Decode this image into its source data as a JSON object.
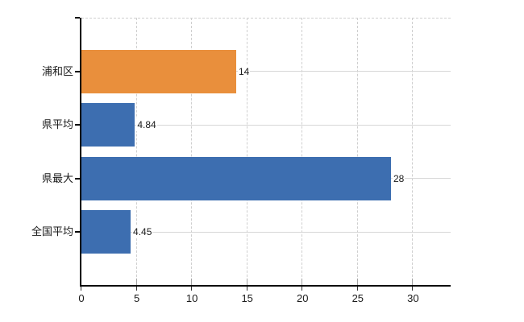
{
  "chart_data": {
    "type": "bar",
    "orientation": "horizontal",
    "categories": [
      "浦和区",
      "県平均",
      "県最大",
      "全国平均"
    ],
    "values": [
      14,
      4.84,
      28,
      4.45
    ],
    "value_labels": [
      "14",
      "4.84",
      "28",
      "4.45"
    ],
    "bar_colors": [
      "#e98f3c",
      "#3d6eb0",
      "#3d6eb0",
      "#3d6eb0"
    ],
    "x_tick_labels": [
      "0",
      "5",
      "10",
      "15",
      "20",
      "25",
      "30"
    ],
    "x_tick_values": [
      0,
      5,
      10,
      15,
      20,
      25,
      30
    ],
    "xlim": [
      0,
      33.4
    ],
    "grid": "on",
    "legend": "none"
  },
  "colors": {
    "bar_blue": "#3d6eb0",
    "bar_orange": "#e98f3c",
    "axis": "#000000",
    "gridline_vertical": "#cfcfcf",
    "gridline_horizontal": "#d7d7d7",
    "inner_tick": "#a3a3a3",
    "text": "#1a1a1a",
    "background": "#ffffff"
  }
}
